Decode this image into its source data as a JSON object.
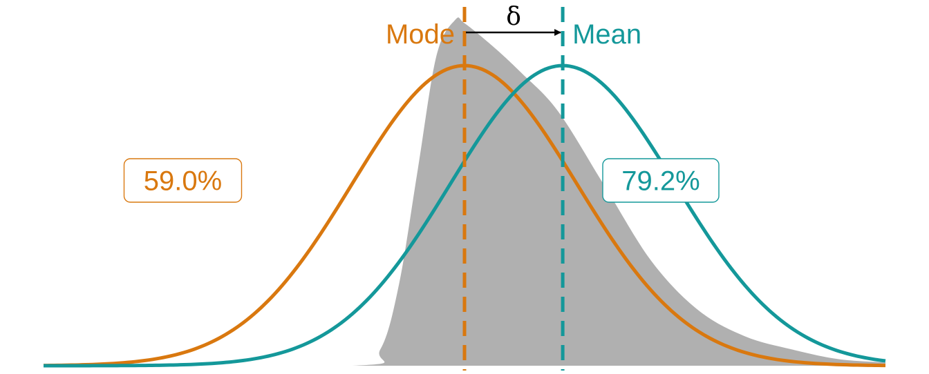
{
  "colors": {
    "mode": "#D9780F",
    "mean": "#14989A",
    "skewed_fill": "#B0B0B0",
    "delta_arrow": "#000000"
  },
  "chart_data": {
    "type": "area",
    "title": "",
    "xlabel": "",
    "ylabel": "",
    "axes_visible": false,
    "grid": false,
    "legend": "none",
    "xlim": [
      -4.5,
      4.5
    ],
    "ylim": [
      0,
      1.1
    ],
    "series": [
      {
        "kind": "area",
        "distribution": "skewed",
        "x": [
          -4.5,
          -1.2,
          -0.9,
          -0.7,
          -0.5,
          -0.3,
          -0.1,
          0.0,
          0.3,
          0.6,
          1.0,
          1.5,
          2.0,
          2.5,
          3.0,
          3.5,
          4.0,
          4.5
        ],
        "y": [
          0.0,
          0.0,
          0.05,
          0.25,
          0.6,
          0.95,
          1.06,
          1.05,
          0.98,
          0.9,
          0.78,
          0.55,
          0.32,
          0.17,
          0.09,
          0.05,
          0.02,
          0.01
        ]
      },
      {
        "name": "Mode",
        "kind": "normal-curve",
        "center": 0.0,
        "sd": 1.2,
        "peak": 0.92,
        "label": "59.0%"
      },
      {
        "name": "Mean",
        "kind": "normal-curve",
        "center": 1.05,
        "sd": 1.2,
        "peak": 0.92,
        "label": "79.2%"
      }
    ],
    "vlines": [
      {
        "name": "Mode",
        "x": 0.0,
        "label": "Mode",
        "style": "dashed"
      },
      {
        "name": "Mean",
        "x": 1.05,
        "label": "Mean",
        "style": "dashed"
      }
    ],
    "annotation": {
      "text": "δ",
      "from": 0.0,
      "to": 1.05,
      "kind": "arrow"
    }
  }
}
